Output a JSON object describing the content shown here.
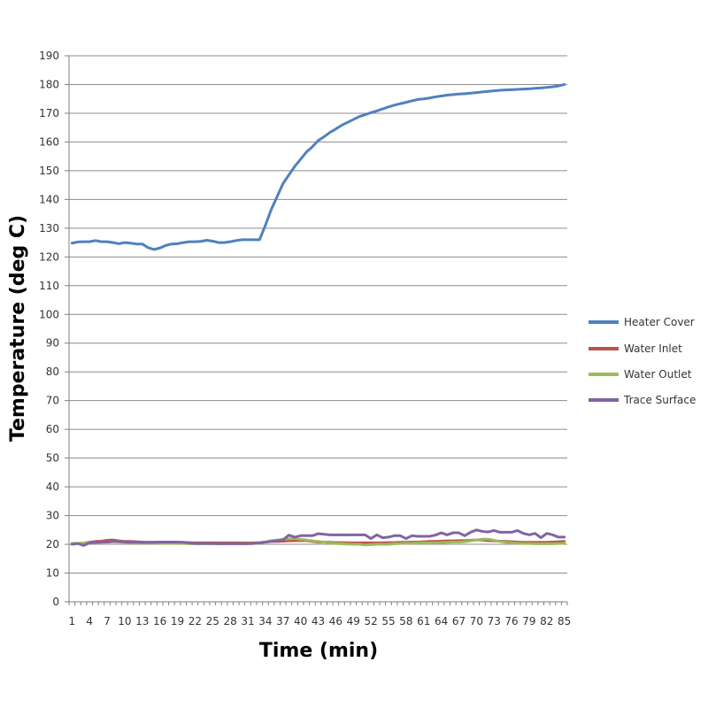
{
  "chart_data": {
    "type": "line",
    "title": "",
    "xlabel": "Time (min)",
    "ylabel": "Temperature (deg C)",
    "ylim": [
      0,
      190
    ],
    "y_ticks": [
      0,
      10,
      20,
      30,
      40,
      50,
      60,
      70,
      80,
      90,
      100,
      110,
      120,
      130,
      140,
      150,
      160,
      170,
      180,
      190
    ],
    "x_range": [
      1,
      85
    ],
    "x_ticks": [
      1,
      4,
      7,
      10,
      13,
      16,
      19,
      22,
      25,
      28,
      31,
      34,
      37,
      40,
      43,
      46,
      49,
      52,
      55,
      58,
      61,
      64,
      67,
      70,
      73,
      76,
      79,
      82,
      85
    ],
    "grid": true,
    "legend_position": "right",
    "series": [
      {
        "name": "Heater Cover",
        "color": "#4f81bd",
        "values": [
          124.8,
          125.2,
          125.3,
          125.3,
          125.7,
          125.3,
          125.3,
          125.0,
          124.6,
          125.0,
          124.8,
          124.5,
          124.5,
          123.2,
          122.6,
          123.1,
          124.0,
          124.5,
          124.6,
          125.0,
          125.3,
          125.3,
          125.4,
          125.8,
          125.5,
          125.0,
          125.0,
          125.3,
          125.7,
          126.0,
          126.0,
          126.0,
          126.0,
          131.0,
          136.5,
          141.0,
          145.5,
          148.5,
          151.5,
          154.0,
          156.5,
          158.3,
          160.5,
          161.8,
          163.3,
          164.5,
          165.8,
          166.8,
          167.8,
          168.8,
          169.5,
          170.2,
          170.8,
          171.5,
          172.2,
          172.8,
          173.3,
          173.8,
          174.3,
          174.8,
          175.0,
          175.3,
          175.7,
          176.0,
          176.3,
          176.5,
          176.7,
          176.8,
          177.0,
          177.2,
          177.4,
          177.6,
          177.8,
          178.0,
          178.1,
          178.2,
          178.3,
          178.4,
          178.5,
          178.7,
          178.8,
          179.0,
          179.2,
          179.5,
          180.0
        ]
      },
      {
        "name": "Water Inlet",
        "color": "#c0504d",
        "values": [
          20.3,
          20.3,
          20.4,
          20.7,
          21.0,
          21.1,
          21.4,
          21.5,
          21.2,
          21.0,
          21.0,
          20.9,
          20.8,
          20.7,
          20.7,
          20.7,
          20.7,
          20.6,
          20.6,
          20.6,
          20.6,
          20.5,
          20.5,
          20.5,
          20.5,
          20.5,
          20.5,
          20.5,
          20.5,
          20.5,
          20.5,
          20.5,
          20.6,
          20.8,
          21.0,
          21.0,
          21.1,
          21.2,
          21.3,
          21.3,
          21.3,
          21.0,
          20.8,
          20.8,
          20.7,
          20.6,
          20.6,
          20.5,
          20.5,
          20.5,
          20.5,
          20.5,
          20.5,
          20.5,
          20.6,
          20.6,
          20.7,
          20.7,
          20.8,
          20.8,
          20.9,
          21.0,
          21.0,
          21.1,
          21.2,
          21.2,
          21.3,
          21.3,
          21.4,
          21.5,
          21.5,
          21.3,
          21.2,
          21.1,
          21.0,
          20.9,
          20.8,
          20.7,
          20.7,
          20.7,
          20.7,
          20.7,
          20.8,
          20.9,
          21.0
        ]
      },
      {
        "name": "Water Outlet",
        "color": "#9bbb59",
        "values": [
          20.2,
          20.3,
          20.3,
          20.5,
          20.6,
          20.7,
          20.8,
          20.9,
          20.8,
          20.7,
          20.6,
          20.5,
          20.5,
          20.5,
          20.5,
          20.4,
          20.4,
          20.3,
          20.3,
          20.3,
          20.2,
          20.2,
          20.2,
          20.2,
          20.2,
          20.2,
          20.2,
          20.2,
          20.2,
          20.2,
          20.3,
          20.3,
          20.5,
          20.8,
          21.3,
          21.5,
          21.8,
          21.9,
          22.0,
          21.7,
          21.5,
          21.2,
          21.0,
          20.8,
          20.5,
          20.3,
          20.2,
          20.1,
          20.0,
          20.0,
          19.8,
          19.9,
          20.0,
          20.0,
          20.0,
          20.2,
          20.3,
          20.4,
          20.4,
          20.5,
          20.5,
          20.5,
          20.5,
          20.6,
          20.7,
          20.8,
          20.8,
          20.9,
          21.2,
          21.5,
          21.8,
          21.8,
          21.4,
          21.0,
          20.7,
          20.5,
          20.4,
          20.3,
          20.3,
          20.2,
          20.2,
          20.2,
          20.2,
          20.3,
          20.4
        ]
      },
      {
        "name": "Trace Surface",
        "color": "#8064a2",
        "values": [
          20.0,
          20.3,
          19.6,
          20.5,
          20.7,
          20.8,
          20.8,
          21.0,
          21.0,
          20.8,
          20.8,
          20.8,
          20.7,
          20.7,
          20.7,
          20.8,
          20.8,
          20.8,
          20.8,
          20.7,
          20.5,
          20.3,
          20.3,
          20.3,
          20.3,
          20.2,
          20.2,
          20.2,
          20.2,
          20.2,
          20.2,
          20.3,
          20.5,
          20.8,
          21.0,
          21.2,
          21.5,
          23.2,
          22.5,
          23.0,
          23.0,
          23.0,
          23.7,
          23.5,
          23.3,
          23.3,
          23.3,
          23.3,
          23.3,
          23.3,
          23.3,
          22.0,
          23.3,
          22.3,
          22.5,
          23.0,
          23.0,
          22.0,
          23.0,
          22.8,
          22.8,
          22.8,
          23.2,
          24.0,
          23.3,
          24.0,
          24.0,
          23.0,
          24.2,
          25.0,
          24.5,
          24.3,
          24.8,
          24.2,
          24.2,
          24.2,
          24.8,
          23.8,
          23.3,
          23.8,
          22.3,
          23.8,
          23.3,
          22.5,
          22.5
        ]
      }
    ]
  }
}
